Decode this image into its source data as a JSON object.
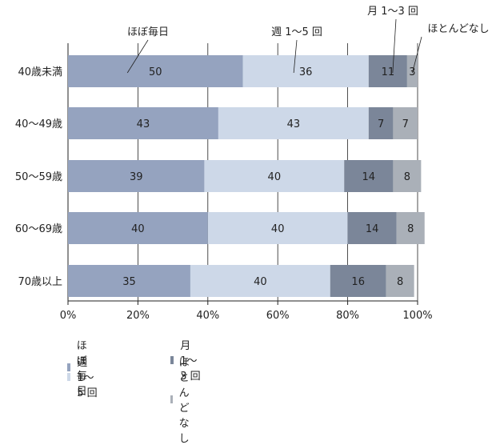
{
  "chart_data": {
    "type": "bar",
    "orientation": "horizontal",
    "stacked": true,
    "percent": true,
    "categories": [
      "40歳未満",
      "40〜49歳",
      "50〜59歳",
      "60〜69歳",
      "70歳以上"
    ],
    "series": [
      {
        "name": "ほぼ毎日",
        "values": [
          50,
          43,
          39,
          40,
          35
        ],
        "color": "#95a3bf"
      },
      {
        "name": "週 1〜5 回",
        "values": [
          36,
          43,
          40,
          40,
          40
        ],
        "color": "#cdd8e8"
      },
      {
        "name": "月 1〜3 回",
        "values": [
          11,
          7,
          14,
          14,
          16
        ],
        "color": "#7b8699"
      },
      {
        "name": "ほとんどなし",
        "values": [
          3,
          7,
          8,
          8,
          8
        ],
        "color": "#aab0b8"
      }
    ],
    "xlim": [
      0,
      100
    ],
    "xticks": [
      "0%",
      "20%",
      "40%",
      "60%",
      "80%",
      "100%"
    ],
    "grid": true,
    "legend_position": "bottom-left"
  }
}
